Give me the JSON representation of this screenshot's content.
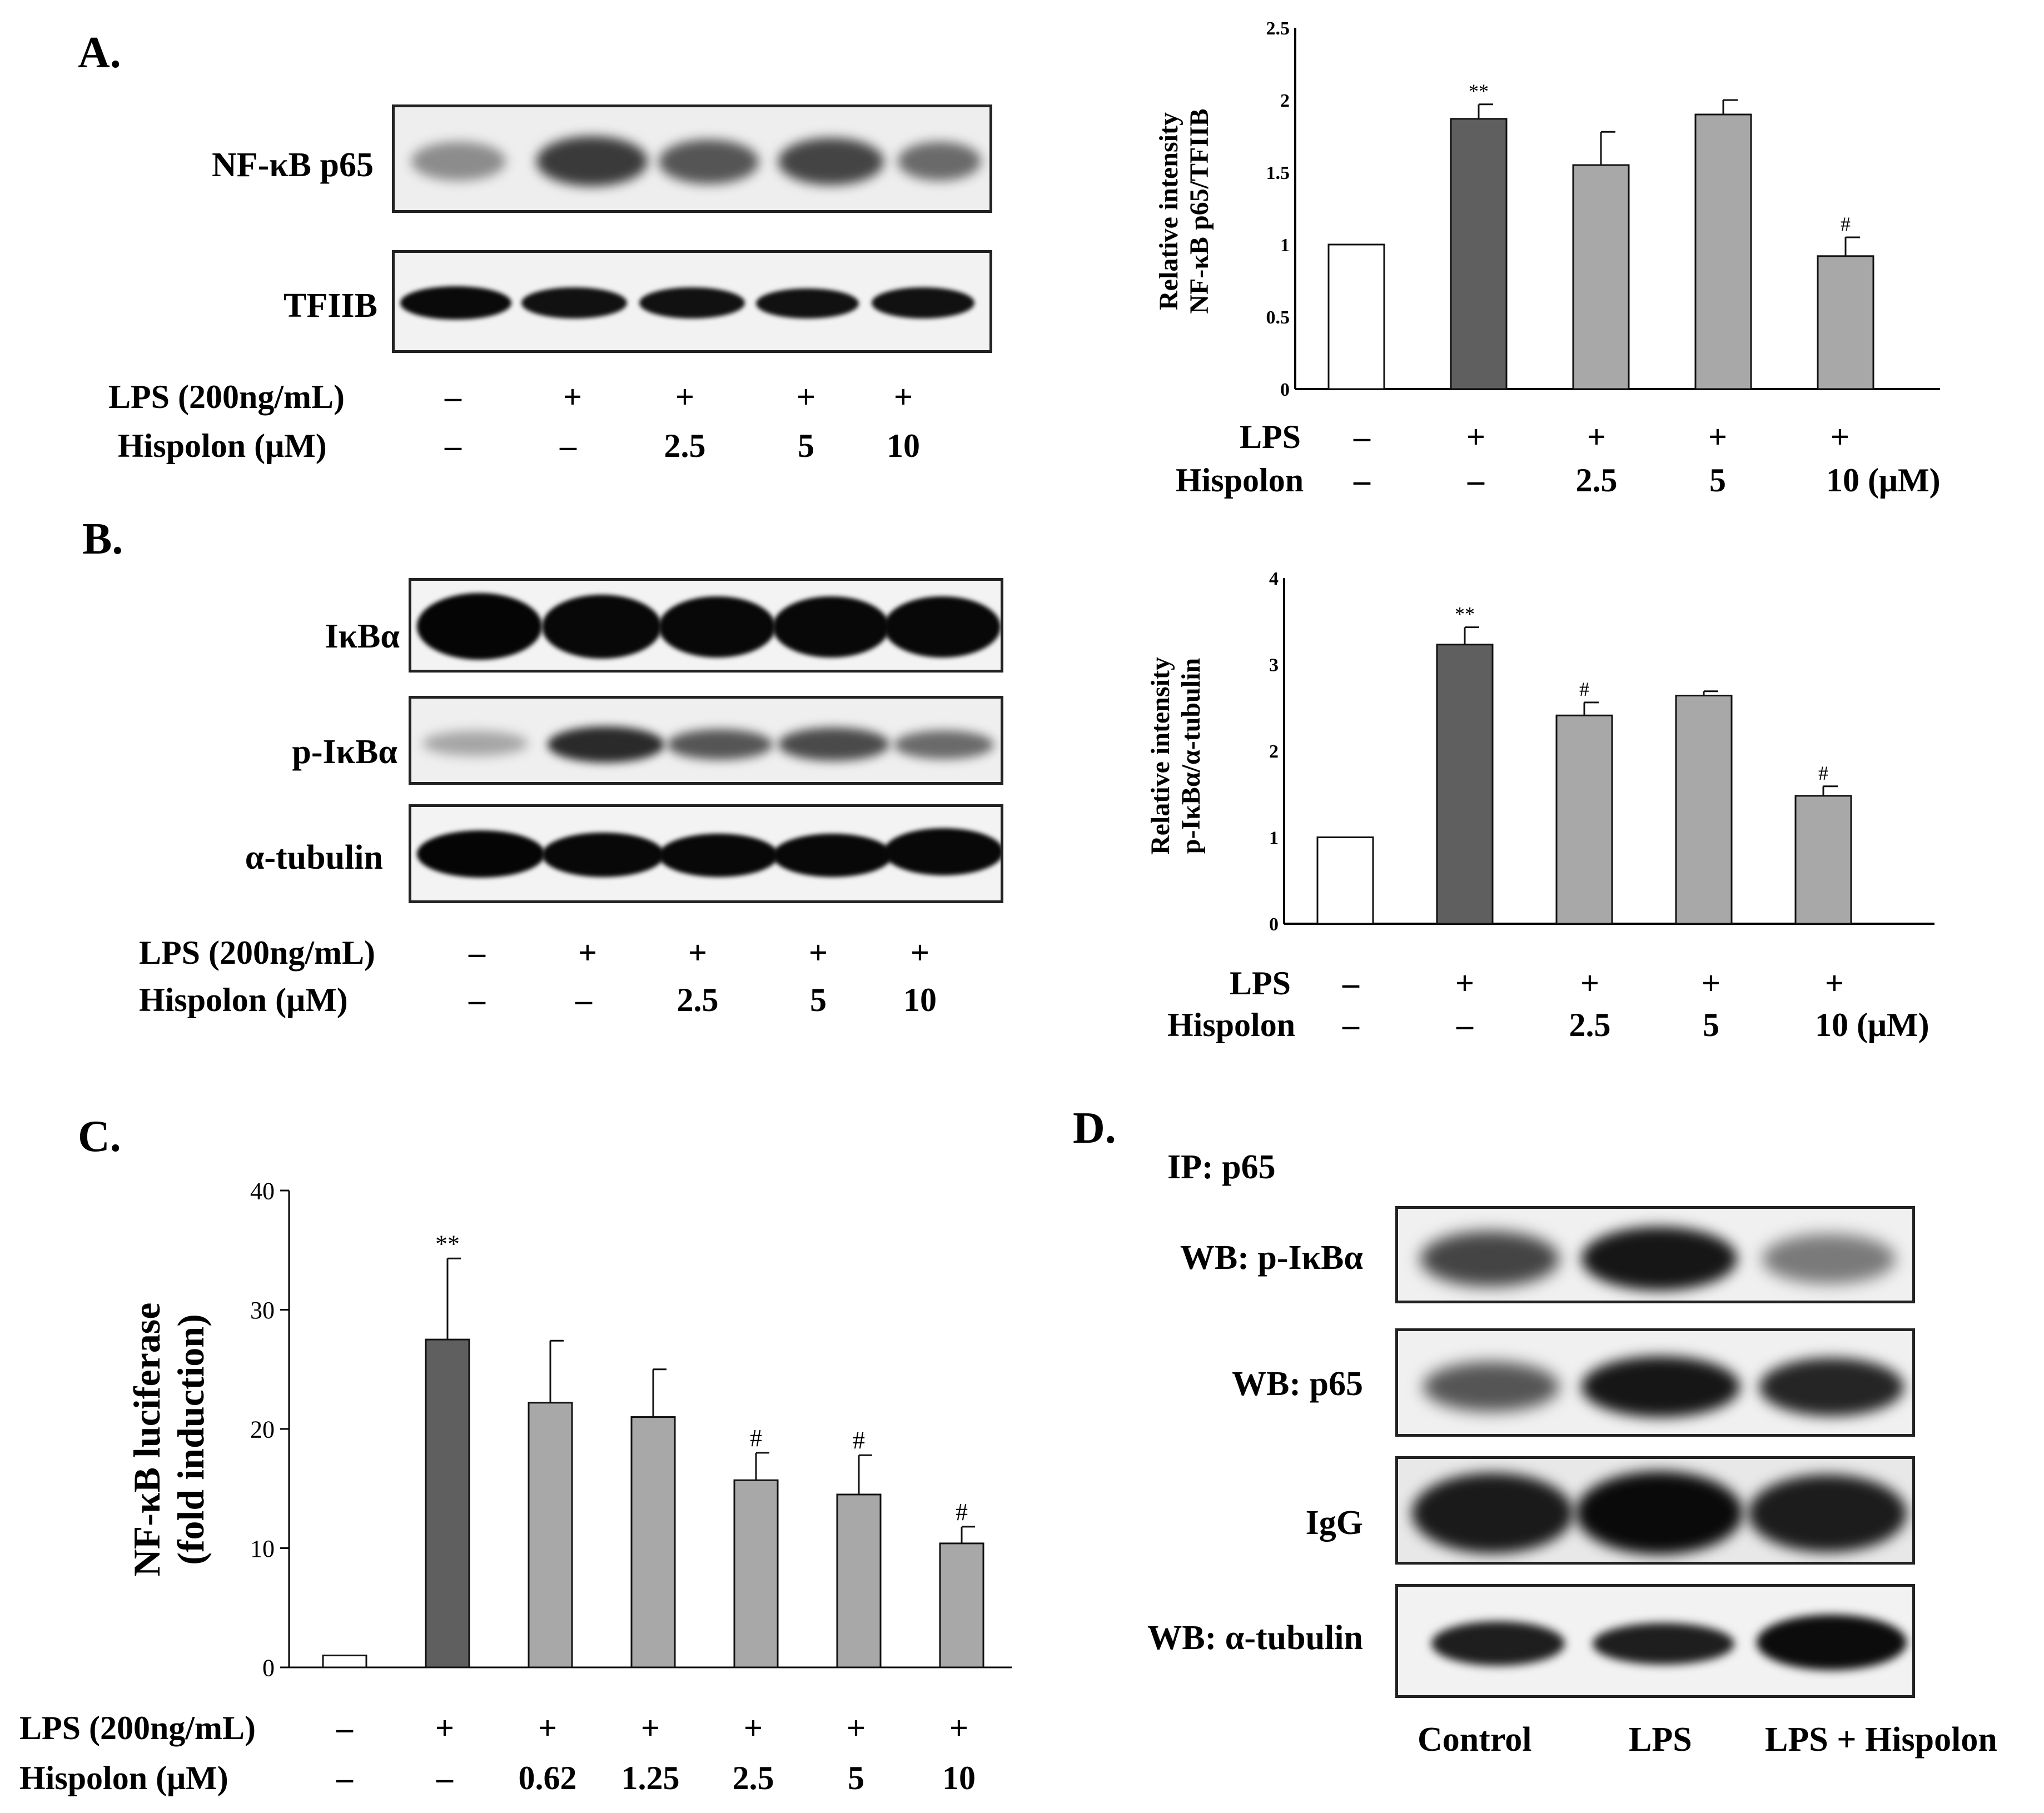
{
  "panels": {
    "A": {
      "letter": "A.",
      "blot_labels": [
        "NF-κB p65",
        "TFIIB"
      ],
      "treatments": {
        "lps_label": "LPS (200ng/mL)",
        "hispolon_label": "Hispolon (μM)",
        "lps": [
          "–",
          "+",
          "+",
          "+",
          "+"
        ],
        "hispolon": [
          "–",
          "–",
          "2.5",
          "5",
          "10"
        ]
      },
      "chart_treatments": {
        "lps_label": "LPS",
        "hispolon_label": "Hispolon",
        "lps": [
          "–",
          "+",
          "+",
          "+",
          "+"
        ],
        "hispolon": [
          "–",
          "–",
          "2.5",
          "5",
          "10 (μM)"
        ]
      }
    },
    "B": {
      "letter": "B.",
      "blot_labels": [
        "IκBα",
        "p-IκBα",
        "α-tubulin"
      ],
      "treatments": {
        "lps_label": "LPS (200ng/mL)",
        "hispolon_label": "Hispolon (μM)",
        "lps": [
          "–",
          "+",
          "+",
          "+",
          "+"
        ],
        "hispolon": [
          "–",
          "–",
          "2.5",
          "5",
          "10"
        ]
      },
      "chart_treatments": {
        "lps_label": "LPS",
        "hispolon_label": "Hispolon",
        "lps": [
          "–",
          "+",
          "+",
          "+",
          "+"
        ],
        "hispolon": [
          "–",
          "–",
          "2.5",
          "5",
          "10 (μM)"
        ]
      }
    },
    "C": {
      "letter": "C.",
      "treatments": {
        "lps_label": "LPS (200ng/mL)",
        "hispolon_label": "Hispolon (μM)",
        "lps": [
          "–",
          "+",
          "+",
          "+",
          "+",
          "+",
          "+"
        ],
        "hispolon": [
          "–",
          "–",
          "0.62",
          "1.25",
          "2.5",
          "5",
          "10"
        ]
      }
    },
    "D": {
      "letter": "D.",
      "ip_label": "IP: p65",
      "blot_labels": [
        "WB: p-IκBα",
        "WB: p65",
        "IgG",
        "WB: α-tubulin"
      ],
      "conditions": [
        "Control",
        "LPS",
        "LPS + Hispolon"
      ]
    }
  },
  "colors": {
    "control": "#ffffff",
    "lps": "#5f5f5f",
    "treated": "#a8a8a8",
    "axis": "#000000"
  },
  "chart_data": [
    {
      "id": "A",
      "type": "bar",
      "ylabel": [
        "Relative intensity",
        "NF-κB p65/TFIIB"
      ],
      "ylim": [
        0,
        2.5
      ],
      "yticks": [
        "0",
        "0.5",
        "1",
        "1.5",
        "2",
        "2.5"
      ],
      "ytick_values": [
        0,
        0.5,
        1,
        1.5,
        2,
        2.5
      ],
      "values": [
        1.0,
        1.87,
        1.55,
        1.9,
        0.92
      ],
      "errors": [
        0,
        0.1,
        0.23,
        0.1,
        0.13
      ],
      "annotations": [
        "",
        "**",
        "",
        "",
        "#"
      ],
      "color_keys": [
        "control",
        "lps",
        "treated",
        "treated",
        "treated"
      ]
    },
    {
      "id": "B",
      "type": "bar",
      "ylabel": [
        "Relative intensity",
        "p-IκBα/α-tubulin"
      ],
      "ylim": [
        0,
        4
      ],
      "yticks": [
        "0",
        "1",
        "2",
        "3",
        "4"
      ],
      "ytick_values": [
        0,
        1,
        2,
        3,
        4
      ],
      "values": [
        1.0,
        3.23,
        2.41,
        2.64,
        1.48
      ],
      "errors": [
        0,
        0.2,
        0.15,
        0.05,
        0.11
      ],
      "annotations": [
        "",
        "**",
        "#",
        "",
        "#"
      ],
      "color_keys": [
        "control",
        "lps",
        "treated",
        "treated",
        "treated"
      ]
    },
    {
      "id": "C",
      "type": "bar",
      "ylabel": [
        "NF-κB luciferase",
        "(fold induction)"
      ],
      "ylim": [
        0,
        40
      ],
      "yticks": [
        "0",
        "10",
        "20",
        "30",
        "40"
      ],
      "ytick_values": [
        0,
        10,
        20,
        30,
        40
      ],
      "values": [
        1.0,
        27.5,
        22.2,
        21.0,
        15.7,
        14.5,
        10.4
      ],
      "errors": [
        0,
        6.8,
        5.2,
        4.0,
        2.3,
        3.3,
        1.4
      ],
      "annotations": [
        "",
        "**",
        "",
        "",
        "#",
        "#",
        "#"
      ],
      "color_keys": [
        "control",
        "lps",
        "treated",
        "treated",
        "treated",
        "treated",
        "treated"
      ]
    }
  ]
}
